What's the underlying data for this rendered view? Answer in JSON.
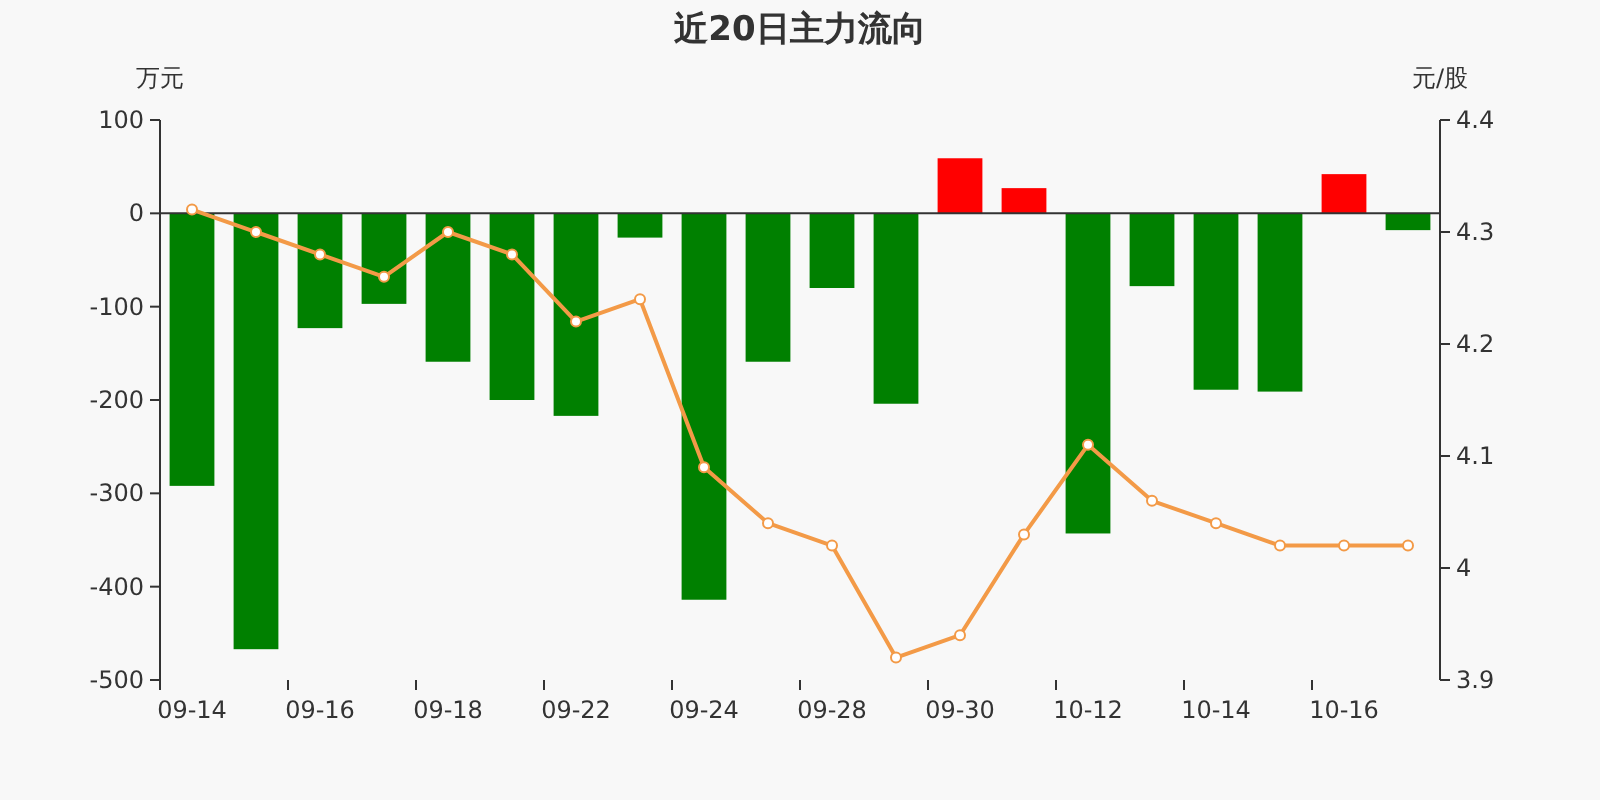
{
  "chart_data": {
    "type": "bar",
    "title": "近20日主力流向",
    "ylabel": "万元",
    "y2label": "元/股",
    "categories": [
      "09-14",
      null,
      "09-16",
      null,
      "09-18",
      null,
      "09-22",
      null,
      "09-24",
      null,
      "09-28",
      null,
      "09-30",
      null,
      "10-12",
      null,
      "10-14",
      null,
      "10-16",
      null
    ],
    "series": [
      {
        "values": [
          -292,
          -467,
          -123,
          -97,
          -159,
          -200,
          -217,
          -26,
          -414,
          -159,
          -80,
          -204,
          59,
          27,
          -343,
          -78,
          -189,
          -191,
          42,
          -18
        ],
        "colors": [
          "#008000",
          "#008000",
          "#008000",
          "#008000",
          "#008000",
          "#008000",
          "#008000",
          "#008000",
          "#008000",
          "#008000",
          "#008000",
          "#008000",
          "#ff0000",
          "#ff0000",
          "#008000",
          "#008000",
          "#008000",
          "#008000",
          "#ff0000",
          "#008000"
        ]
      },
      {
        "type": "line",
        "axis": "y2",
        "color": "#f39a47",
        "marker": "circle",
        "values": [
          4.32,
          4.3,
          4.28,
          4.26,
          4.3,
          4.28,
          4.22,
          4.24,
          4.09,
          4.04,
          4.02,
          3.92,
          3.94,
          4.03,
          4.11,
          4.06,
          4.04,
          4.02,
          4.02,
          4.02
        ]
      }
    ],
    "ylim": [
      -500,
      100
    ],
    "yticks": [
      -500,
      -400,
      -300,
      -200,
      -100,
      0,
      100
    ],
    "y2lim": [
      3.9,
      4.4
    ],
    "y2ticks": [
      3.9,
      4,
      4.1,
      4.2,
      4.3,
      4.4
    ]
  }
}
